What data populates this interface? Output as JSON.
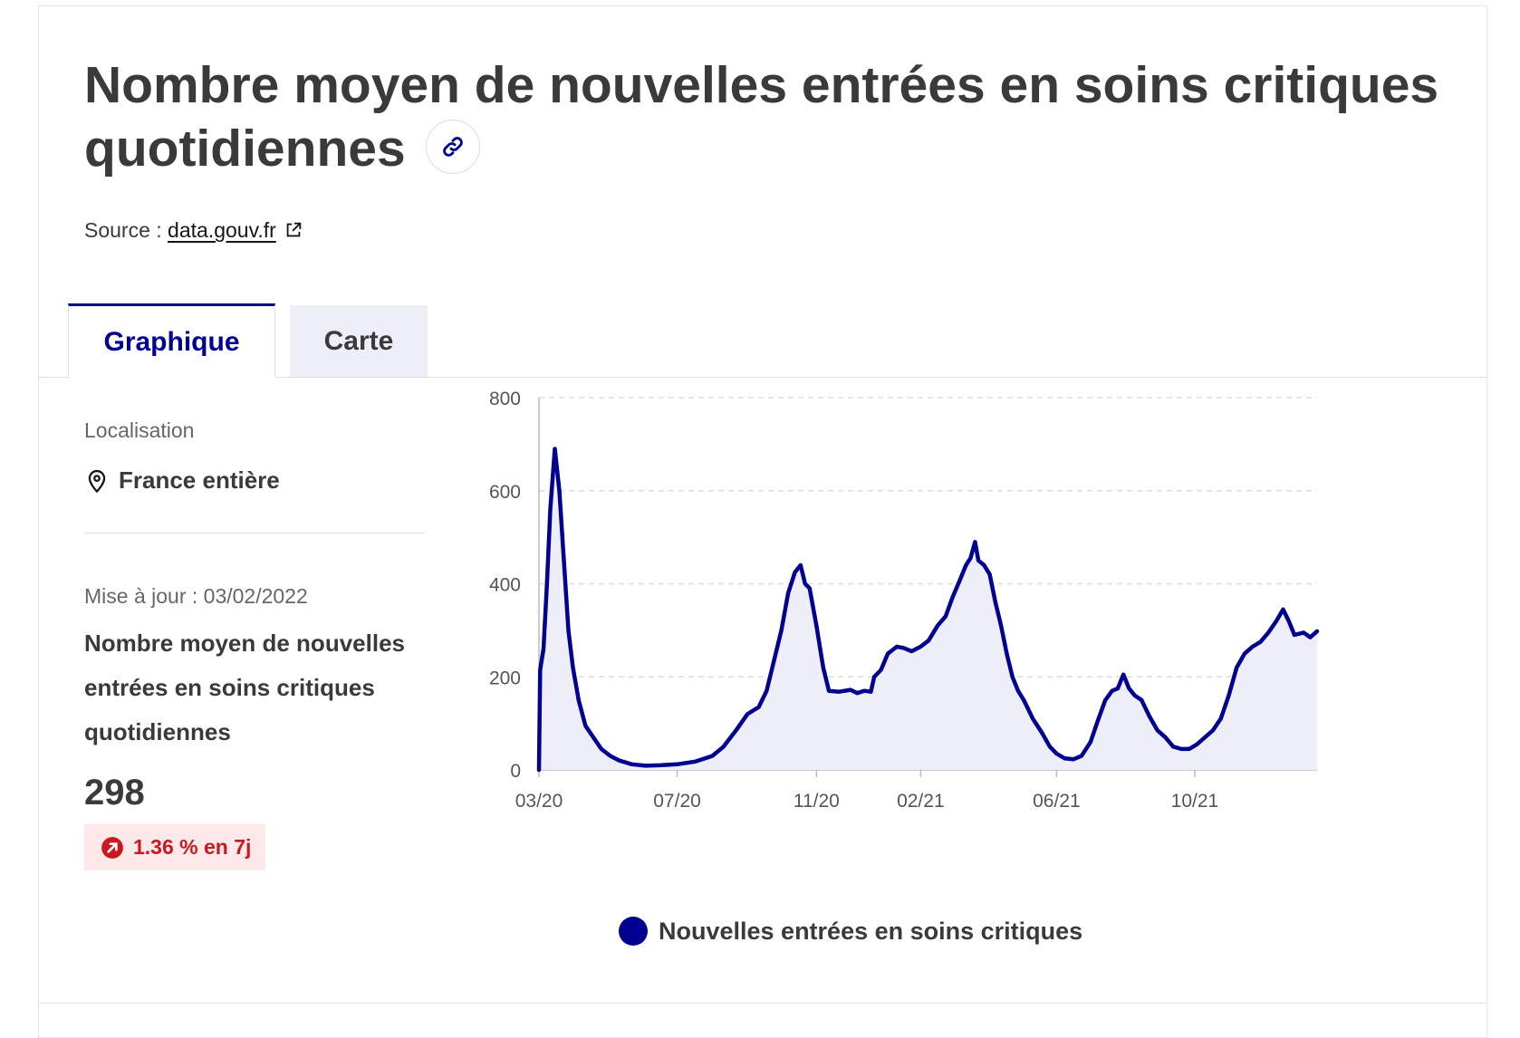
{
  "header": {
    "title": "Nombre moyen de nouvelles entrées en soins critiques quotidiennes",
    "source_label": "Source : ",
    "source_link": "data.gouv.fr"
  },
  "tabs": [
    {
      "label": "Graphique",
      "active": true
    },
    {
      "label": "Carte",
      "active": false
    }
  ],
  "sidebar": {
    "location_label": "Localisation",
    "location_value": "France entière",
    "updated": "Mise à jour : 03/02/2022",
    "indicator_name": "Nombre moyen de nouvelles entrées en soins critiques quotidiennes",
    "indicator_value": "298",
    "trend": "1.36 % en 7j"
  },
  "colors": {
    "accent": "#000091",
    "area_fill": "#eeeef8",
    "grid": "#dddddd",
    "trend_bg": "#fde9e9",
    "trend_text": "#c9191e"
  },
  "chart_data": {
    "type": "area",
    "title": "",
    "xlabel": "",
    "ylabel": "",
    "ylim": [
      0,
      800
    ],
    "yticks": [
      0,
      200,
      400,
      600,
      800
    ],
    "xlim": [
      "2020-03-18",
      "2022-02-03"
    ],
    "xticks": [
      {
        "date": "2020-03-18",
        "label": "03/20"
      },
      {
        "date": "2020-07-18",
        "label": "07/20"
      },
      {
        "date": "2020-11-18",
        "label": "11/20"
      },
      {
        "date": "2021-02-18",
        "label": "02/21"
      },
      {
        "date": "2021-06-18",
        "label": "06/21"
      },
      {
        "date": "2021-10-18",
        "label": "10/21"
      }
    ],
    "grid": true,
    "legend_position": "bottom",
    "series": [
      {
        "name": "Nouvelles entrées en soins critiques",
        "points": [
          [
            "2020-03-18",
            0
          ],
          [
            "2020-03-19",
            215
          ],
          [
            "2020-03-22",
            260
          ],
          [
            "2020-03-25",
            400
          ],
          [
            "2020-03-28",
            560
          ],
          [
            "2020-04-01",
            690
          ],
          [
            "2020-04-05",
            600
          ],
          [
            "2020-04-09",
            450
          ],
          [
            "2020-04-13",
            300
          ],
          [
            "2020-04-17",
            220
          ],
          [
            "2020-04-22",
            150
          ],
          [
            "2020-04-28",
            95
          ],
          [
            "2020-05-05",
            70
          ],
          [
            "2020-05-12",
            45
          ],
          [
            "2020-05-20",
            30
          ],
          [
            "2020-05-28",
            20
          ],
          [
            "2020-06-08",
            12
          ],
          [
            "2020-06-20",
            9
          ],
          [
            "2020-07-03",
            10
          ],
          [
            "2020-07-18",
            12
          ],
          [
            "2020-08-03",
            18
          ],
          [
            "2020-08-18",
            30
          ],
          [
            "2020-08-28",
            50
          ],
          [
            "2020-09-08",
            85
          ],
          [
            "2020-09-18",
            120
          ],
          [
            "2020-09-28",
            135
          ],
          [
            "2020-10-05",
            170
          ],
          [
            "2020-10-12",
            240
          ],
          [
            "2020-10-18",
            300
          ],
          [
            "2020-10-24",
            380
          ],
          [
            "2020-10-30",
            425
          ],
          [
            "2020-11-04",
            440
          ],
          [
            "2020-11-08",
            400
          ],
          [
            "2020-11-12",
            390
          ],
          [
            "2020-11-18",
            310
          ],
          [
            "2020-11-24",
            220
          ],
          [
            "2020-11-29",
            170
          ],
          [
            "2020-12-08",
            168
          ],
          [
            "2020-12-18",
            172
          ],
          [
            "2020-12-24",
            165
          ],
          [
            "2020-12-30",
            170
          ],
          [
            "2021-01-05",
            168
          ],
          [
            "2021-01-08",
            200
          ],
          [
            "2021-01-14",
            215
          ],
          [
            "2021-01-20",
            250
          ],
          [
            "2021-01-28",
            265
          ],
          [
            "2021-02-03",
            262
          ],
          [
            "2021-02-10",
            255
          ],
          [
            "2021-02-18",
            265
          ],
          [
            "2021-02-25",
            278
          ],
          [
            "2021-03-05",
            310
          ],
          [
            "2021-03-12",
            330
          ],
          [
            "2021-03-18",
            370
          ],
          [
            "2021-03-25",
            410
          ],
          [
            "2021-03-30",
            440
          ],
          [
            "2021-04-03",
            455
          ],
          [
            "2021-04-07",
            490
          ],
          [
            "2021-04-10",
            450
          ],
          [
            "2021-04-15",
            440
          ],
          [
            "2021-04-20",
            420
          ],
          [
            "2021-04-25",
            360
          ],
          [
            "2021-04-30",
            310
          ],
          [
            "2021-05-05",
            250
          ],
          [
            "2021-05-10",
            200
          ],
          [
            "2021-05-15",
            170
          ],
          [
            "2021-05-20",
            150
          ],
          [
            "2021-05-28",
            110
          ],
          [
            "2021-06-05",
            80
          ],
          [
            "2021-06-12",
            50
          ],
          [
            "2021-06-18",
            35
          ],
          [
            "2021-06-25",
            25
          ],
          [
            "2021-07-03",
            23
          ],
          [
            "2021-07-10",
            30
          ],
          [
            "2021-07-18",
            60
          ],
          [
            "2021-07-25",
            110
          ],
          [
            "2021-07-31",
            150
          ],
          [
            "2021-08-06",
            170
          ],
          [
            "2021-08-11",
            175
          ],
          [
            "2021-08-16",
            205
          ],
          [
            "2021-08-21",
            175
          ],
          [
            "2021-08-26",
            160
          ],
          [
            "2021-09-01",
            150
          ],
          [
            "2021-09-08",
            115
          ],
          [
            "2021-09-15",
            85
          ],
          [
            "2021-09-22",
            70
          ],
          [
            "2021-09-29",
            50
          ],
          [
            "2021-10-06",
            45
          ],
          [
            "2021-10-13",
            45
          ],
          [
            "2021-10-20",
            55
          ],
          [
            "2021-10-27",
            70
          ],
          [
            "2021-11-03",
            85
          ],
          [
            "2021-11-10",
            110
          ],
          [
            "2021-11-17",
            160
          ],
          [
            "2021-11-24",
            220
          ],
          [
            "2021-12-01",
            250
          ],
          [
            "2021-12-08",
            265
          ],
          [
            "2021-12-15",
            275
          ],
          [
            "2021-12-22",
            295
          ],
          [
            "2021-12-29",
            320
          ],
          [
            "2022-01-04",
            345
          ],
          [
            "2022-01-09",
            320
          ],
          [
            "2022-01-14",
            290
          ],
          [
            "2022-01-22",
            295
          ],
          [
            "2022-01-28",
            285
          ],
          [
            "2022-02-03",
            298
          ]
        ]
      }
    ]
  }
}
